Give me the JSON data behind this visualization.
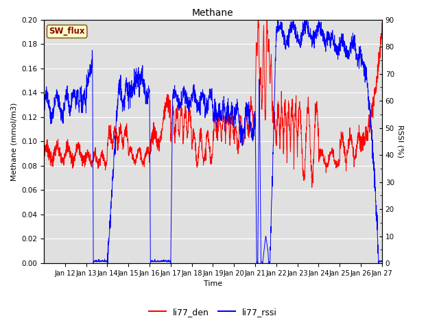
{
  "title": "Methane",
  "xlabel": "Time",
  "ylabel_left": "Methane (mmol/m3)",
  "ylabel_right": "RSSI (%)",
  "ylim_left": [
    0.0,
    0.2
  ],
  "ylim_right": [
    0,
    90
  ],
  "yticks_left": [
    0.0,
    0.02,
    0.04,
    0.06,
    0.08,
    0.1,
    0.12,
    0.14,
    0.16,
    0.18,
    0.2
  ],
  "yticks_right": [
    0,
    10,
    20,
    30,
    40,
    50,
    60,
    70,
    80,
    90
  ],
  "xlim_days": [
    11,
    27
  ],
  "xtick_days": [
    12,
    13,
    14,
    15,
    16,
    17,
    18,
    19,
    20,
    21,
    22,
    23,
    24,
    25,
    26,
    27
  ],
  "xtick_labels": [
    "Jan 12",
    "Jan 13",
    "Jan 14",
    "Jan 15",
    "Jan 16",
    "Jan 17",
    "Jan 18",
    "Jan 19",
    "Jan 20",
    "Jan 21",
    "Jan 22",
    "Jan 23",
    "Jan 24",
    "Jan 25",
    "Jan 26",
    "Jan 27"
  ],
  "sw_flux_label": "SW_flux",
  "legend_labels": [
    "li77_den",
    "li77_rssi"
  ],
  "line_colors": [
    "red",
    "blue"
  ],
  "bg_color": "#e0e0e0",
  "fig_color": "#ffffff",
  "sw_flux_bg": "#ffffcc",
  "sw_flux_border": "#8B6914"
}
